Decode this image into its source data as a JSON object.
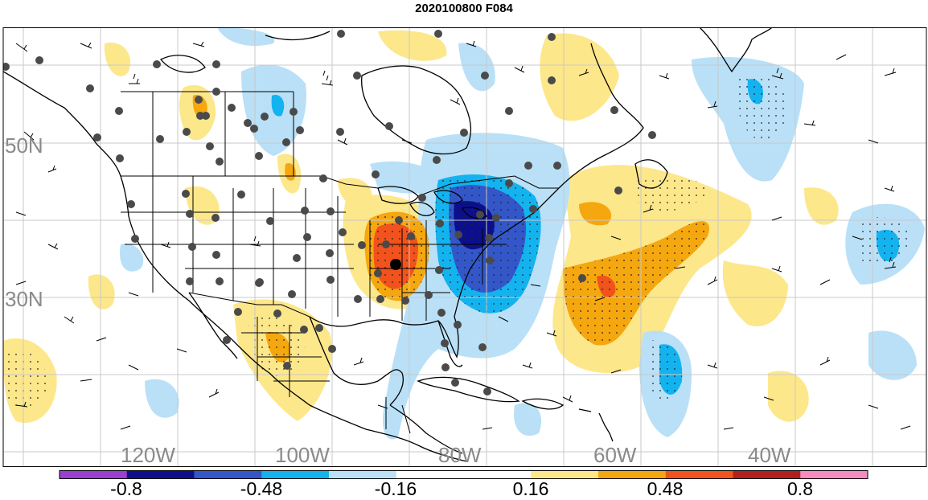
{
  "title": "2020100800 F084",
  "map": {
    "lat_labels": [
      "50N",
      "30N"
    ],
    "lon_labels": [
      "120W",
      "100W",
      "80W",
      "60W",
      "40W"
    ],
    "label_color": "#8a8a8a"
  },
  "colorbar": {
    "colors": [
      "#9a3fd0",
      "#0c0f8c",
      "#3357c9",
      "#13b3ef",
      "#b9e0f7",
      "#ffffff",
      "#ffffff",
      "#fde78b",
      "#f5a70f",
      "#f2521c",
      "#b31f1f",
      "#f48cc0"
    ],
    "tick_labels": [
      "-0.8",
      "-0.48",
      "-0.16",
      "0.16",
      "0.48",
      "0.8"
    ]
  }
}
